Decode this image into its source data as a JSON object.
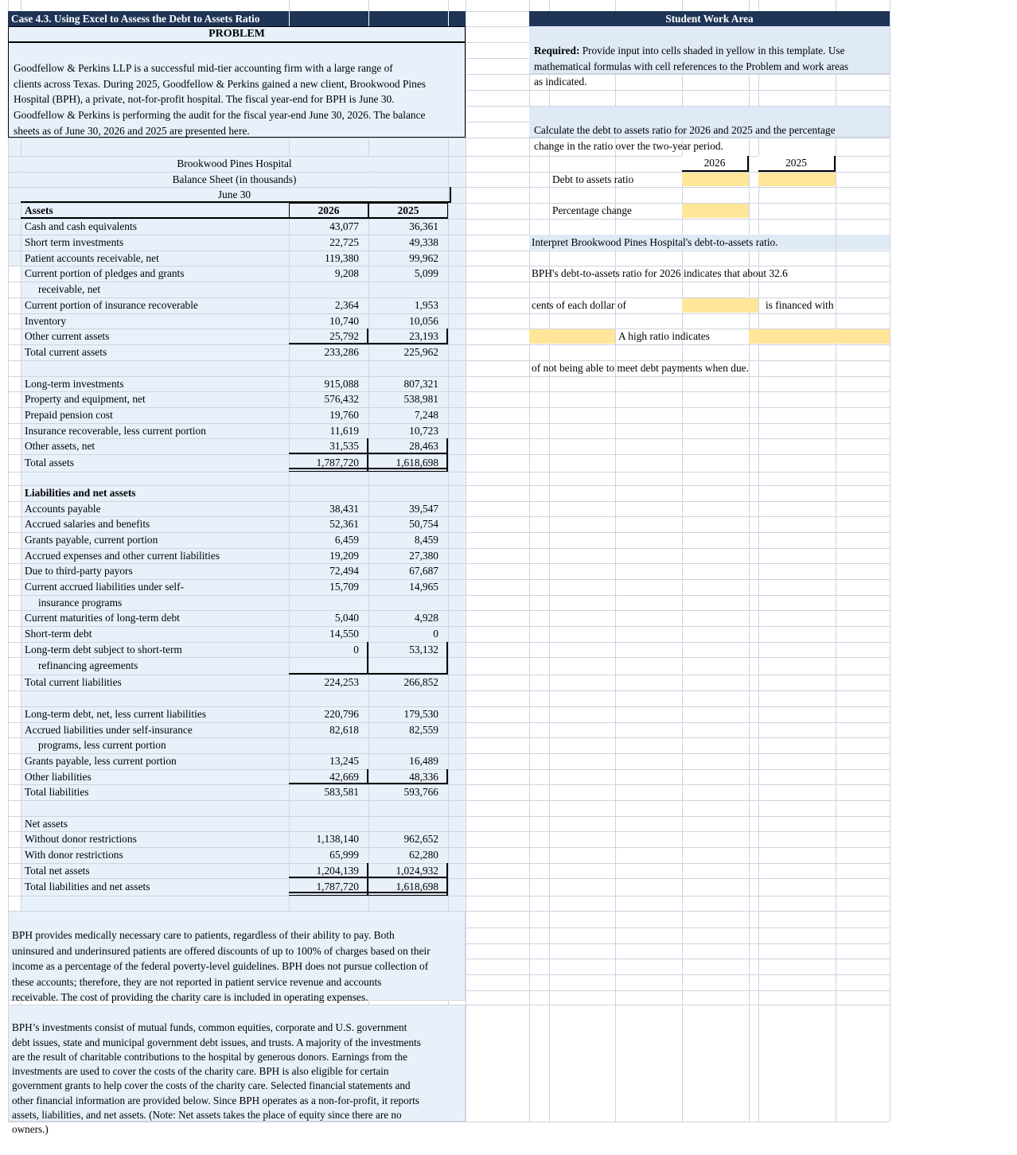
{
  "colors": {
    "navy": "#1f3557",
    "panel_blue": "#e8f1fa",
    "band_blue": "#dfeaf6",
    "input_yellow": "#ffe699",
    "gridline": "#cfd3e0"
  },
  "case_header": "Case 4.3. Using Excel to Assess the Debt to Assets Ratio",
  "problem": {
    "title": "PROBLEM",
    "text": "Goodfellow & Perkins LLP is a successful mid-tier accounting firm with a large range of\nclients across Texas. During 2025, Goodfellow & Perkins gained a new client, Brookwood Pines\nHospital (BPH), a private, not-for-profit hospital. The fiscal year-end for BPH is June 30.\nGoodfellow & Perkins is performing the audit for the fiscal year-end June 30, 2026. The balance\nsheets as of June 30, 2026 and 2025 are presented here."
  },
  "work_area": {
    "title": "Student Work Area",
    "required_bold": "Required:",
    "required_rest": " Provide input into cells shaded in yellow in this template. Use\nmathematical formulas with cell references to the Problem and work areas\nas indicated.",
    "calculate": "Calculate the debt to assets ratio for 2026 and 2025 and the percentage\nchange in the ratio over the two-year period.",
    "col_2026": "2026",
    "col_2025": "2025",
    "debt_ratio_label": "Debt to assets ratio",
    "pct_change_label": "Percentage change",
    "interpret": "Interpret Brookwood Pines Hospital's debt-to-assets ratio.",
    "interp_line1": "BPH's debt-to-assets ratio for 2026 indicates that about 32.6",
    "interp_line2a": "cents of each dollar of",
    "interp_line2b": "is financed with",
    "interp_line3": "A high ratio indicates",
    "interp_line4": "of not being able to meet debt payments when due."
  },
  "balance_sheet": {
    "title1": "Brookwood Pines Hospital",
    "title2": "Balance Sheet (in thousands)",
    "title3": "June 30",
    "assets_header": "Assets",
    "col_2026": "2026",
    "col_2025": "2025",
    "rows": [
      {
        "l": "Cash and cash equivalents",
        "v26": "43,077",
        "v25": "36,361"
      },
      {
        "l": "Short term investments",
        "v26": "22,725",
        "v25": "49,338"
      },
      {
        "l": "Patient accounts receivable, net",
        "v26": "119,380",
        "v25": "99,962"
      },
      {
        "l": "Current portion of pledges and grants",
        "v26": "9,208",
        "v25": "5,099"
      },
      {
        "l": "receivable, net",
        "f": "i"
      },
      {
        "l": "Current portion of insurance recoverable",
        "v26": "2,364",
        "v25": "1,953"
      },
      {
        "l": "Inventory",
        "v26": "10,740",
        "v25": "10,056"
      },
      {
        "l": "Other current assets",
        "v26": "25,792",
        "v25": "23,193",
        "f": "ut"
      },
      {
        "l": "Total current assets",
        "v26": "233,286",
        "v25": "225,962"
      },
      {},
      {
        "l": "Long-term investments",
        "v26": "915,088",
        "v25": "807,321"
      },
      {
        "l": "Property and equipment, net",
        "v26": "576,432",
        "v25": "538,981"
      },
      {
        "l": "Prepaid pension cost",
        "v26": "19,760",
        "v25": "7,248"
      },
      {
        "l": "Insurance recoverable, less current portion",
        "v26": "11,619",
        "v25": "10,723"
      },
      {
        "l": "Other assets, net",
        "v26": "31,535",
        "v25": "28,463",
        "f": "ut"
      },
      {
        "l": "Total assets",
        "v26": "1,787,720",
        "v25": "1,618,698",
        "f": "dt"
      },
      {},
      {
        "l": "Liabilities and net assets",
        "f": "b"
      },
      {
        "l": "Accounts payable",
        "v26": "38,431",
        "v25": "39,547"
      },
      {
        "l": "Accrued salaries and benefits",
        "v26": "52,361",
        "v25": "50,754"
      },
      {
        "l": "Grants payable, current portion",
        "v26": "6,459",
        "v25": "8,459"
      },
      {
        "l": "Accrued expenses and other current liabilities",
        "v26": "19,209",
        "v25": "27,380"
      },
      {
        "l": "Due to third-party payors",
        "v26": "72,494",
        "v25": "67,687"
      },
      {
        "l": "Current accrued liabilities under self-",
        "v26": "15,709",
        "v25": "14,965"
      },
      {
        "l": "insurance programs",
        "f": "i"
      },
      {
        "l": "Current maturities of long-term debt",
        "v26": "5,040",
        "v25": "4,928"
      },
      {
        "l": "Short-term debt",
        "v26": "14,550",
        "v25": "0"
      },
      {
        "l": "Long-term debt subject to short-term",
        "v26": "0",
        "v25": "53,132",
        "f": "t"
      },
      {
        "l": "refinancing agreements",
        "f": "iut"
      },
      {
        "l": "Total current liabilities",
        "v26": "224,253",
        "v25": "266,852"
      },
      {},
      {
        "l": "Long-term debt, net, less current liabilities",
        "v26": "220,796",
        "v25": "179,530"
      },
      {
        "l": "Accrued liabilities under self-insurance",
        "v26": "82,618",
        "v25": "82,559"
      },
      {
        "l": "programs, less current portion",
        "f": "i"
      },
      {
        "l": "Grants payable, less current portion",
        "v26": "13,245",
        "v25": "16,489"
      },
      {
        "l": "Other liabilities",
        "v26": "42,669",
        "v25": "48,336",
        "f": "ut"
      },
      {
        "l": "Total liabilities",
        "v26": "583,581",
        "v25": "593,766"
      },
      {},
      {
        "l": "Net assets"
      },
      {
        "l": "Without donor restrictions",
        "v26": "1,138,140",
        "v25": "962,652"
      },
      {
        "l": "With donor restrictions",
        "v26": "65,999",
        "v25": "62,280"
      },
      {
        "l": "Total net assets",
        "v26": "1,204,139",
        "v25": "1,024,932",
        "f": "ut"
      },
      {
        "l": "Total liabilities and net assets",
        "v26": "1,787,720",
        "v25": "1,618,698",
        "f": "dt"
      }
    ]
  },
  "notes": {
    "p1": "BPH provides medically necessary care to patients, regardless of their ability to pay. Both\nuninsured and underinsured patients are offered discounts of up to 100% of charges based on their\nincome as a percentage of the federal poverty-level guidelines. BPH does not pursue collection of\nthese accounts; therefore, they are not reported in patient service revenue and accounts\nreceivable. The cost of providing the charity care is included in operating expenses.",
    "p2": "BPH’s investments consist of mutual funds, common equities, corporate and U.S. government\ndebt issues, state and municipal government debt issues, and trusts. A majority of the investments\nare the result of charitable contributions to the hospital by generous donors. Earnings from the\ninvestments are used to cover the costs of the charity care. BPH is also eligible for certain\ngovernment grants to help cover the costs of the charity care. Selected financial statements and\nother financial information are provided below. Since BPH operates as a non-for-profit, it reports\nassets, liabilities, and net assets. (Note: Net assets takes the place of equity since there are no\nowners.)"
  }
}
